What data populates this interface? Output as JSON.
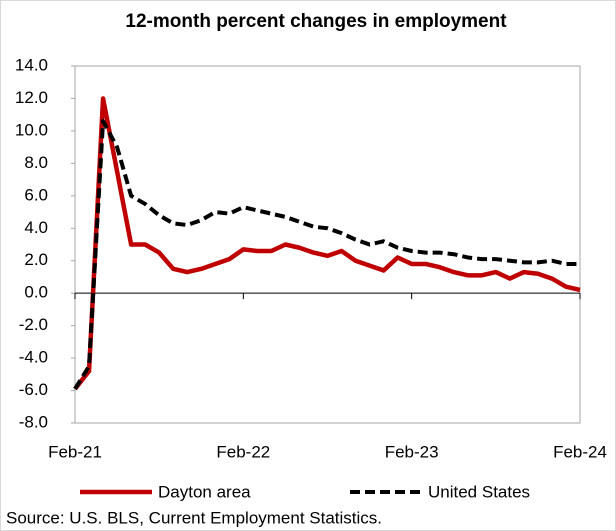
{
  "chart_data": {
    "type": "line",
    "title": "12-month percent changes in employment",
    "categories": [
      "Feb-21",
      null,
      null,
      null,
      null,
      null,
      null,
      null,
      null,
      null,
      null,
      null,
      "Feb-22",
      null,
      null,
      null,
      null,
      null,
      null,
      null,
      null,
      null,
      null,
      null,
      "Feb-23",
      null,
      null,
      null,
      null,
      null,
      null,
      null,
      null,
      null,
      null,
      null,
      "Feb-24"
    ],
    "series": [
      {
        "name": "Dayton area",
        "color": "#c00000",
        "dashed": false,
        "values": [
          -5.9,
          -4.8,
          12.0,
          7.5,
          3.0,
          3.0,
          2.5,
          1.5,
          1.3,
          1.5,
          1.8,
          2.1,
          2.7,
          2.6,
          2.6,
          3.0,
          2.8,
          2.5,
          2.3,
          2.6,
          2.0,
          1.7,
          1.4,
          2.2,
          1.8,
          1.8,
          1.6,
          1.3,
          1.1,
          1.1,
          1.3,
          0.9,
          1.3,
          1.2,
          0.9,
          0.4,
          0.2
        ]
      },
      {
        "name": "United States",
        "color": "#000000",
        "dashed": true,
        "values": [
          -5.9,
          -4.5,
          10.6,
          9.0,
          6.0,
          5.5,
          4.8,
          4.3,
          4.2,
          4.5,
          5.0,
          4.9,
          5.3,
          5.1,
          4.9,
          4.7,
          4.4,
          4.1,
          4.0,
          3.7,
          3.3,
          3.0,
          3.2,
          2.8,
          2.6,
          2.5,
          2.5,
          2.4,
          2.2,
          2.1,
          2.1,
          2.0,
          1.9,
          1.9,
          2.0,
          1.8,
          1.8
        ]
      }
    ],
    "ylim": [
      -8,
      14
    ],
    "yticks": [
      {
        "value": -8,
        "label": "-8.0"
      },
      {
        "value": -6,
        "label": "-6.0"
      },
      {
        "value": -4,
        "label": "-4.0"
      },
      {
        "value": -2,
        "label": "-2.0"
      },
      {
        "value": 0,
        "label": "0.0"
      },
      {
        "value": 2,
        "label": "2.0"
      },
      {
        "value": 4,
        "label": "4.0"
      },
      {
        "value": 6,
        "label": "6.0"
      },
      {
        "value": 8,
        "label": "8.0"
      },
      {
        "value": 10,
        "label": "10.0"
      },
      {
        "value": 12,
        "label": "12.0"
      },
      {
        "value": 14,
        "label": "14.0"
      }
    ],
    "grid": false,
    "source": "Source: U.S. BLS, Current Employment Statistics."
  }
}
